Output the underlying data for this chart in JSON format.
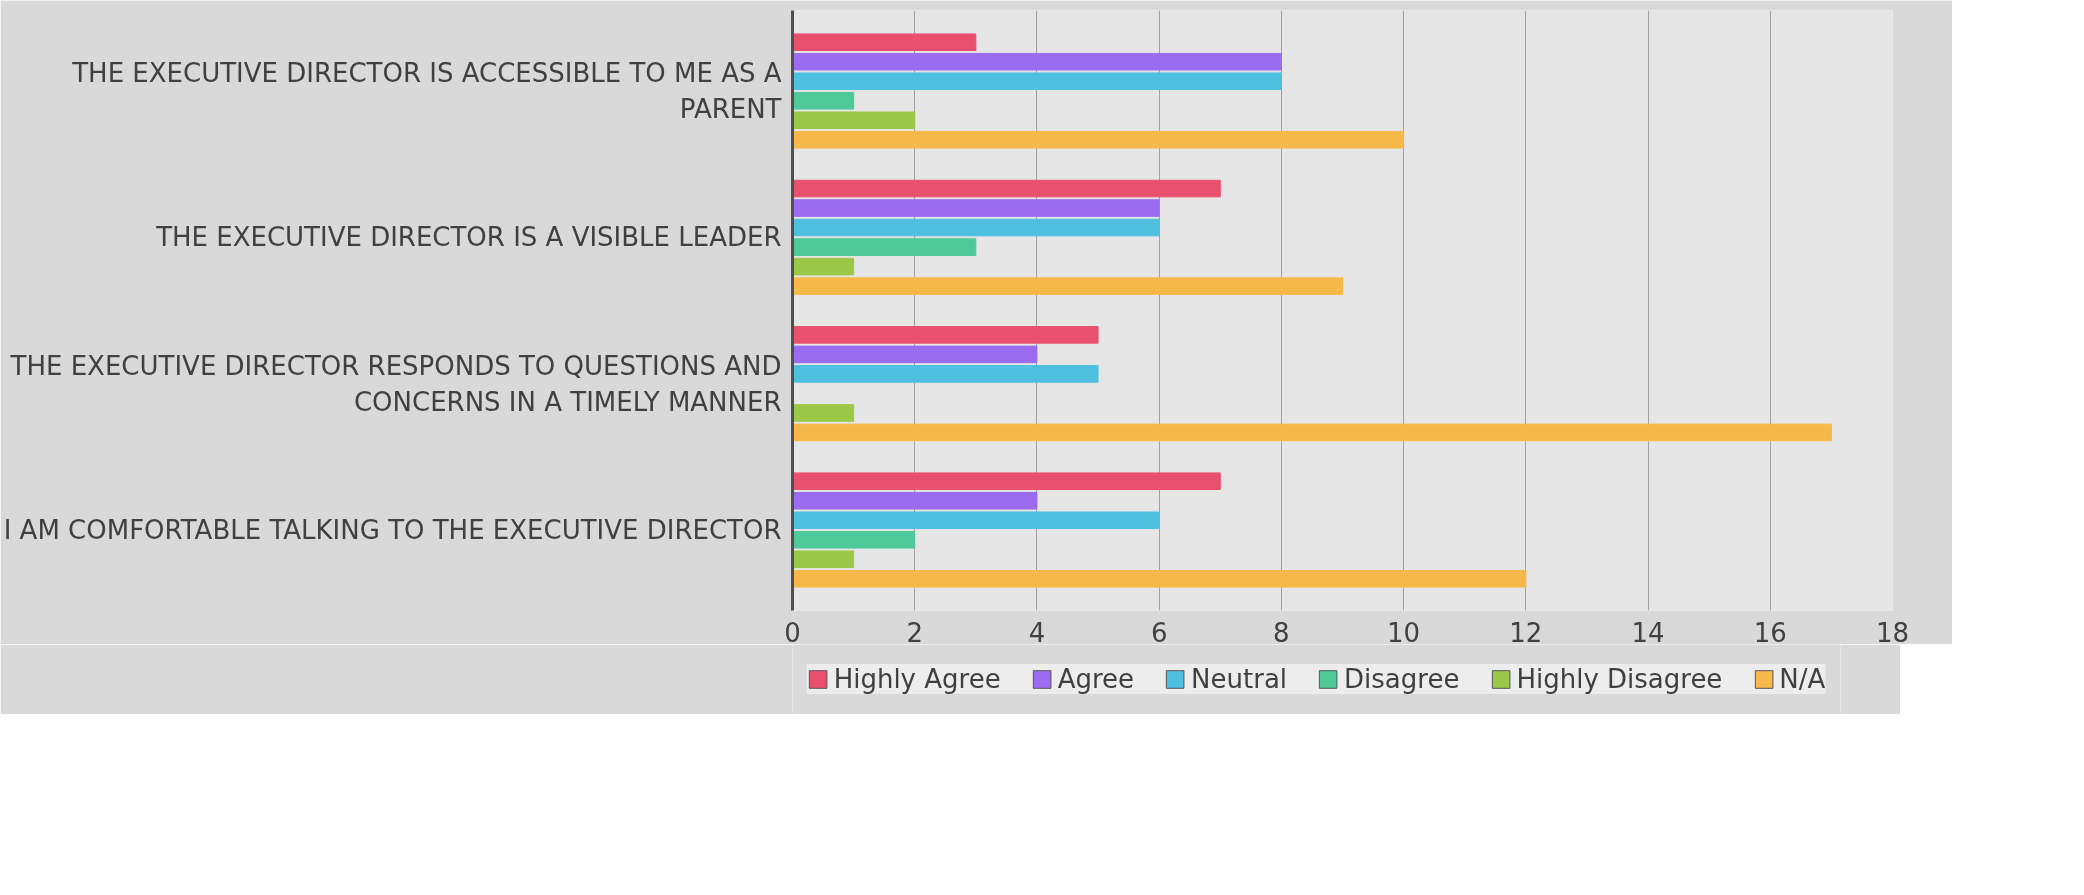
{
  "chart_data": {
    "type": "bar",
    "orientation": "horizontal",
    "categories": [
      "THE EXECUTIVE DIRECTOR IS ACCESSIBLE TO ME AS A PARENT",
      "THE EXECUTIVE DIRECTOR IS A VISIBLE LEADER",
      "THE EXECUTIVE DIRECTOR RESPONDS TO QUESTIONS AND CONCERNS IN A TIMELY MANNER",
      "I AM COMFORTABLE TALKING TO THE EXECUTIVE DIRECTOR"
    ],
    "series": [
      {
        "name": "Highly Agree",
        "color": "#e8506e",
        "values": [
          3,
          7,
          5,
          7
        ]
      },
      {
        "name": "Agree",
        "color": "#9c6cf0",
        "values": [
          8,
          6,
          4,
          4
        ]
      },
      {
        "name": "Neutral",
        "color": "#4fbfe0",
        "values": [
          8,
          6,
          5,
          6
        ]
      },
      {
        "name": "Disagree",
        "color": "#4fc89a",
        "values": [
          1,
          3,
          0,
          2
        ]
      },
      {
        "name": "Highly Disagree",
        "color": "#9cc84a",
        "values": [
          2,
          1,
          1,
          1
        ]
      },
      {
        "name": "N/A",
        "color": "#f7b84a",
        "values": [
          10,
          9,
          17,
          12
        ]
      }
    ],
    "xlim": [
      0,
      18
    ],
    "xticks": [
      0,
      2,
      4,
      6,
      8,
      10,
      12,
      14,
      16,
      18
    ],
    "grid": "x",
    "legend": "bottom"
  }
}
